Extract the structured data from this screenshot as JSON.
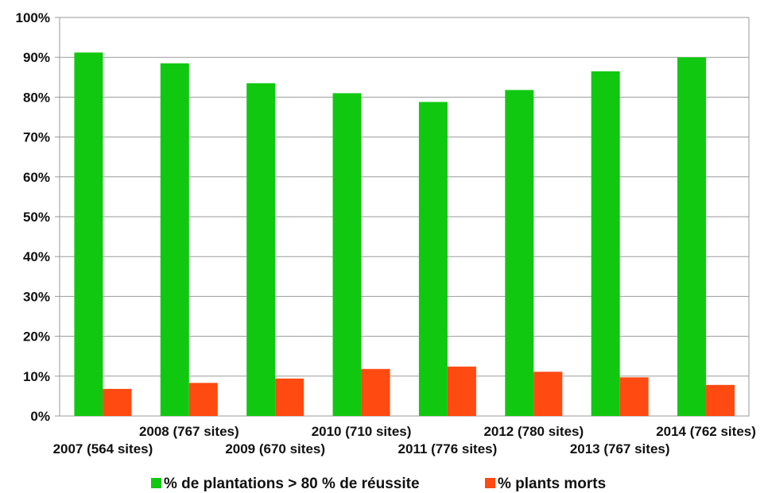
{
  "chart_data": {
    "type": "bar",
    "categories": [
      "2007 (564 sites)",
      "2008 (767 sites)",
      "2009 (670 sites)",
      "2010 (710 sites)",
      "2011 (776 sites)",
      "2012 (780 sites)",
      "2013 (767 sites)",
      "2014 (762 sites)"
    ],
    "series": [
      {
        "name": "% de plantations > 80 % de réussite",
        "color": "#11c811",
        "values": [
          91.2,
          88.5,
          83.5,
          81.0,
          78.8,
          81.8,
          86.5,
          90.0
        ]
      },
      {
        "name": "% plants morts",
        "color": "#ff4a12",
        "values": [
          6.8,
          8.3,
          9.4,
          11.8,
          12.4,
          11.1,
          9.7,
          7.8
        ]
      }
    ],
    "y_ticks": [
      "0%",
      "10%",
      "20%",
      "30%",
      "40%",
      "50%",
      "60%",
      "70%",
      "80%",
      "90%",
      "100%"
    ],
    "ylim": [
      0,
      100
    ],
    "grid": true,
    "legend_position": "bottom-center",
    "title": "",
    "xlabel": "",
    "ylabel": ""
  }
}
